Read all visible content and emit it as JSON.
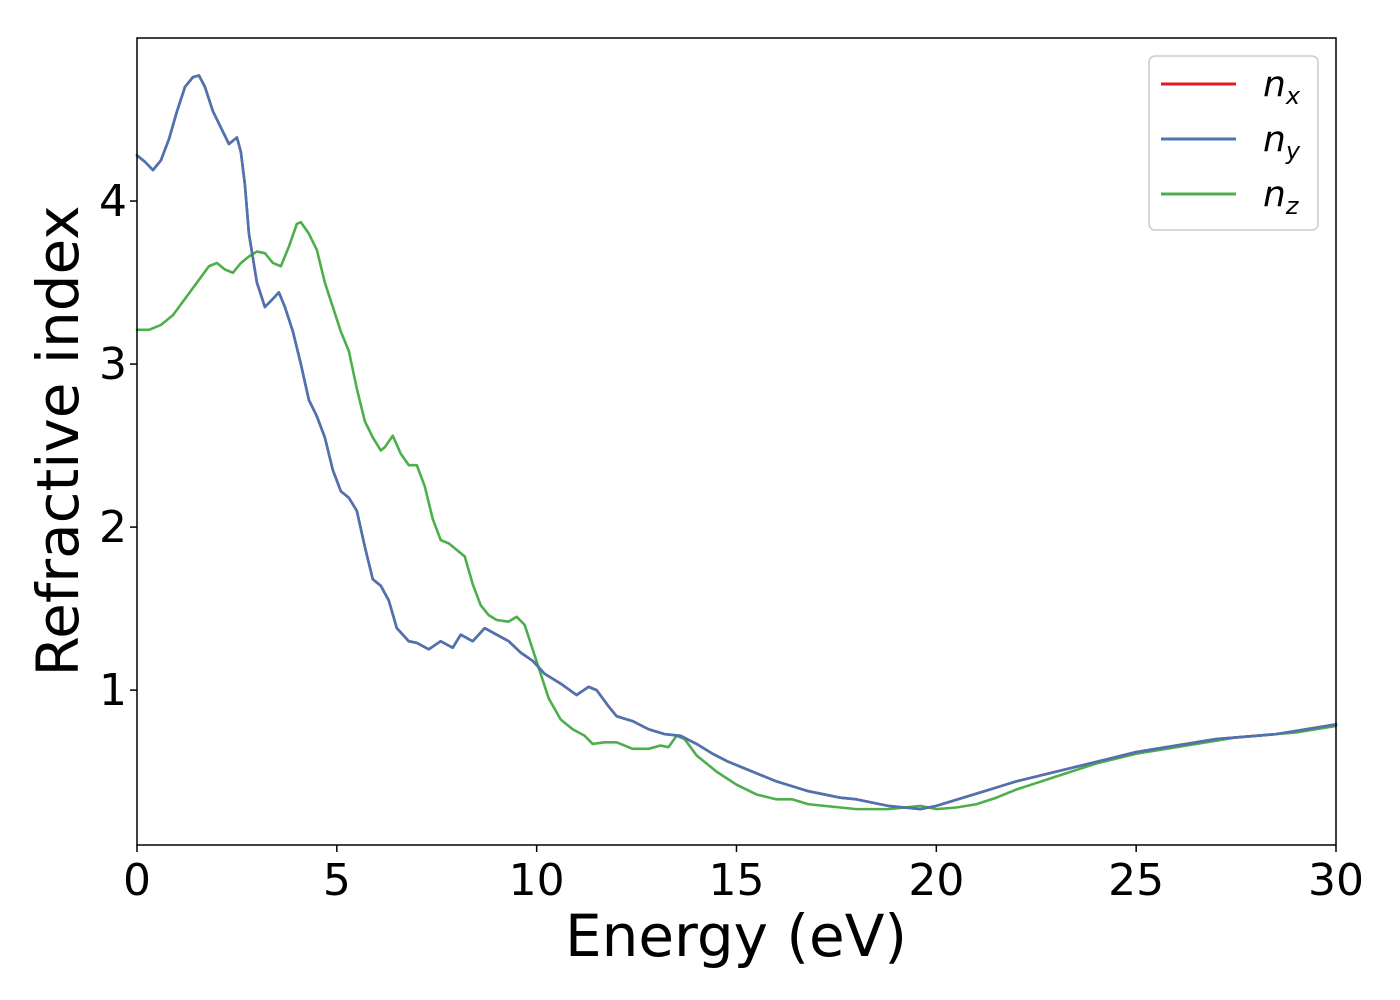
{
  "chart_data": {
    "type": "line",
    "xlabel": "Energy (eV)",
    "ylabel": "Refractive index",
    "xlim": [
      0,
      30
    ],
    "ylim": [
      0.05,
      5.0
    ],
    "xticks": [
      0,
      5,
      10,
      15,
      20,
      25,
      30
    ],
    "xtick_labels": [
      "0",
      "5",
      "10",
      "15",
      "20",
      "25",
      "30"
    ],
    "yticks": [
      1,
      2,
      3,
      4
    ],
    "ytick_labels": [
      "1",
      "2",
      "3",
      "4"
    ],
    "grid": false,
    "legend_position": "top-right",
    "series": [
      {
        "name": "n",
        "subscript": "x",
        "color": "#e41a1c",
        "points": [
          [
            0,
            4.28
          ],
          [
            0.2,
            4.24
          ],
          [
            0.4,
            4.19
          ],
          [
            0.6,
            4.25
          ],
          [
            0.8,
            4.38
          ],
          [
            1.0,
            4.55
          ],
          [
            1.2,
            4.7
          ],
          [
            1.4,
            4.76
          ],
          [
            1.55,
            4.77
          ],
          [
            1.7,
            4.7
          ],
          [
            1.9,
            4.55
          ],
          [
            2.1,
            4.45
          ],
          [
            2.3,
            4.35
          ],
          [
            2.5,
            4.39
          ],
          [
            2.6,
            4.3
          ],
          [
            2.7,
            4.1
          ],
          [
            2.8,
            3.8
          ],
          [
            3.0,
            3.5
          ],
          [
            3.2,
            3.35
          ],
          [
            3.4,
            3.4
          ],
          [
            3.55,
            3.44
          ],
          [
            3.7,
            3.35
          ],
          [
            3.9,
            3.2
          ],
          [
            4.1,
            3.0
          ],
          [
            4.3,
            2.78
          ],
          [
            4.5,
            2.68
          ],
          [
            4.7,
            2.55
          ],
          [
            4.9,
            2.35
          ],
          [
            5.1,
            2.22
          ],
          [
            5.3,
            2.18
          ],
          [
            5.5,
            2.1
          ],
          [
            5.7,
            1.88
          ],
          [
            5.9,
            1.68
          ],
          [
            6.1,
            1.64
          ],
          [
            6.3,
            1.55
          ],
          [
            6.5,
            1.38
          ],
          [
            6.8,
            1.3
          ],
          [
            7.0,
            1.29
          ],
          [
            7.3,
            1.25
          ],
          [
            7.6,
            1.3
          ],
          [
            7.9,
            1.26
          ],
          [
            8.1,
            1.34
          ],
          [
            8.4,
            1.3
          ],
          [
            8.7,
            1.38
          ],
          [
            9.0,
            1.34
          ],
          [
            9.3,
            1.3
          ],
          [
            9.6,
            1.23
          ],
          [
            9.9,
            1.18
          ],
          [
            10.2,
            1.1
          ],
          [
            10.6,
            1.04
          ],
          [
            11.0,
            0.97
          ],
          [
            11.3,
            1.02
          ],
          [
            11.5,
            1.0
          ],
          [
            11.8,
            0.9
          ],
          [
            12.0,
            0.84
          ],
          [
            12.4,
            0.81
          ],
          [
            12.8,
            0.76
          ],
          [
            13.2,
            0.73
          ],
          [
            13.6,
            0.72
          ],
          [
            14.0,
            0.67
          ],
          [
            14.4,
            0.61
          ],
          [
            14.8,
            0.56
          ],
          [
            15.2,
            0.52
          ],
          [
            15.6,
            0.48
          ],
          [
            16.0,
            0.44
          ],
          [
            16.4,
            0.41
          ],
          [
            16.8,
            0.38
          ],
          [
            17.2,
            0.36
          ],
          [
            17.6,
            0.34
          ],
          [
            18.0,
            0.33
          ],
          [
            18.4,
            0.31
          ],
          [
            18.8,
            0.29
          ],
          [
            19.2,
            0.28
          ],
          [
            19.6,
            0.27
          ],
          [
            20.0,
            0.29
          ],
          [
            20.4,
            0.32
          ],
          [
            20.8,
            0.35
          ],
          [
            21.2,
            0.38
          ],
          [
            21.6,
            0.41
          ],
          [
            22.0,
            0.44
          ],
          [
            22.5,
            0.47
          ],
          [
            23.0,
            0.5
          ],
          [
            23.5,
            0.53
          ],
          [
            24.0,
            0.56
          ],
          [
            24.5,
            0.59
          ],
          [
            25.0,
            0.62
          ],
          [
            25.5,
            0.64
          ],
          [
            26.0,
            0.66
          ],
          [
            26.5,
            0.68
          ],
          [
            27.0,
            0.7
          ],
          [
            27.5,
            0.71
          ],
          [
            28.0,
            0.72
          ],
          [
            28.5,
            0.73
          ],
          [
            29.0,
            0.75
          ],
          [
            29.5,
            0.77
          ],
          [
            30.0,
            0.79
          ]
        ]
      },
      {
        "name": "n",
        "subscript": "y",
        "color": "#4a74b4",
        "points": [
          [
            0,
            4.28
          ],
          [
            0.2,
            4.24
          ],
          [
            0.4,
            4.19
          ],
          [
            0.6,
            4.25
          ],
          [
            0.8,
            4.38
          ],
          [
            1.0,
            4.55
          ],
          [
            1.2,
            4.7
          ],
          [
            1.4,
            4.76
          ],
          [
            1.55,
            4.77
          ],
          [
            1.7,
            4.7
          ],
          [
            1.9,
            4.55
          ],
          [
            2.1,
            4.45
          ],
          [
            2.3,
            4.35
          ],
          [
            2.5,
            4.39
          ],
          [
            2.6,
            4.3
          ],
          [
            2.7,
            4.1
          ],
          [
            2.8,
            3.8
          ],
          [
            3.0,
            3.5
          ],
          [
            3.2,
            3.35
          ],
          [
            3.4,
            3.4
          ],
          [
            3.55,
            3.44
          ],
          [
            3.7,
            3.35
          ],
          [
            3.9,
            3.2
          ],
          [
            4.1,
            3.0
          ],
          [
            4.3,
            2.78
          ],
          [
            4.5,
            2.68
          ],
          [
            4.7,
            2.55
          ],
          [
            4.9,
            2.35
          ],
          [
            5.1,
            2.22
          ],
          [
            5.3,
            2.18
          ],
          [
            5.5,
            2.1
          ],
          [
            5.7,
            1.88
          ],
          [
            5.9,
            1.68
          ],
          [
            6.1,
            1.64
          ],
          [
            6.3,
            1.55
          ],
          [
            6.5,
            1.38
          ],
          [
            6.8,
            1.3
          ],
          [
            7.0,
            1.29
          ],
          [
            7.3,
            1.25
          ],
          [
            7.6,
            1.3
          ],
          [
            7.9,
            1.26
          ],
          [
            8.1,
            1.34
          ],
          [
            8.4,
            1.3
          ],
          [
            8.7,
            1.38
          ],
          [
            9.0,
            1.34
          ],
          [
            9.3,
            1.3
          ],
          [
            9.6,
            1.23
          ],
          [
            9.9,
            1.18
          ],
          [
            10.2,
            1.1
          ],
          [
            10.6,
            1.04
          ],
          [
            11.0,
            0.97
          ],
          [
            11.3,
            1.02
          ],
          [
            11.5,
            1.0
          ],
          [
            11.8,
            0.9
          ],
          [
            12.0,
            0.84
          ],
          [
            12.4,
            0.81
          ],
          [
            12.8,
            0.76
          ],
          [
            13.2,
            0.73
          ],
          [
            13.6,
            0.72
          ],
          [
            14.0,
            0.67
          ],
          [
            14.4,
            0.61
          ],
          [
            14.8,
            0.56
          ],
          [
            15.2,
            0.52
          ],
          [
            15.6,
            0.48
          ],
          [
            16.0,
            0.44
          ],
          [
            16.4,
            0.41
          ],
          [
            16.8,
            0.38
          ],
          [
            17.2,
            0.36
          ],
          [
            17.6,
            0.34
          ],
          [
            18.0,
            0.33
          ],
          [
            18.4,
            0.31
          ],
          [
            18.8,
            0.29
          ],
          [
            19.2,
            0.28
          ],
          [
            19.6,
            0.27
          ],
          [
            20.0,
            0.29
          ],
          [
            20.4,
            0.32
          ],
          [
            20.8,
            0.35
          ],
          [
            21.2,
            0.38
          ],
          [
            21.6,
            0.41
          ],
          [
            22.0,
            0.44
          ],
          [
            22.5,
            0.47
          ],
          [
            23.0,
            0.5
          ],
          [
            23.5,
            0.53
          ],
          [
            24.0,
            0.56
          ],
          [
            24.5,
            0.59
          ],
          [
            25.0,
            0.62
          ],
          [
            25.5,
            0.64
          ],
          [
            26.0,
            0.66
          ],
          [
            26.5,
            0.68
          ],
          [
            27.0,
            0.7
          ],
          [
            27.5,
            0.71
          ],
          [
            28.0,
            0.72
          ],
          [
            28.5,
            0.73
          ],
          [
            29.0,
            0.75
          ],
          [
            29.5,
            0.77
          ],
          [
            30.0,
            0.79
          ]
        ]
      },
      {
        "name": "n",
        "subscript": "z",
        "color": "#4daf4a",
        "points": [
          [
            0,
            3.21
          ],
          [
            0.3,
            3.21
          ],
          [
            0.6,
            3.24
          ],
          [
            0.9,
            3.3
          ],
          [
            1.2,
            3.4
          ],
          [
            1.5,
            3.5
          ],
          [
            1.8,
            3.6
          ],
          [
            2.0,
            3.62
          ],
          [
            2.2,
            3.58
          ],
          [
            2.4,
            3.56
          ],
          [
            2.6,
            3.62
          ],
          [
            2.8,
            3.66
          ],
          [
            3.0,
            3.69
          ],
          [
            3.2,
            3.68
          ],
          [
            3.4,
            3.62
          ],
          [
            3.6,
            3.6
          ],
          [
            3.8,
            3.72
          ],
          [
            4.0,
            3.86
          ],
          [
            4.1,
            3.87
          ],
          [
            4.3,
            3.8
          ],
          [
            4.5,
            3.7
          ],
          [
            4.7,
            3.5
          ],
          [
            4.9,
            3.35
          ],
          [
            5.1,
            3.2
          ],
          [
            5.3,
            3.08
          ],
          [
            5.5,
            2.85
          ],
          [
            5.7,
            2.65
          ],
          [
            5.9,
            2.55
          ],
          [
            6.1,
            2.47
          ],
          [
            6.2,
            2.49
          ],
          [
            6.4,
            2.56
          ],
          [
            6.6,
            2.45
          ],
          [
            6.8,
            2.38
          ],
          [
            7.0,
            2.38
          ],
          [
            7.2,
            2.25
          ],
          [
            7.4,
            2.05
          ],
          [
            7.6,
            1.92
          ],
          [
            7.8,
            1.9
          ],
          [
            8.0,
            1.86
          ],
          [
            8.2,
            1.82
          ],
          [
            8.4,
            1.65
          ],
          [
            8.6,
            1.52
          ],
          [
            8.8,
            1.46
          ],
          [
            9.0,
            1.43
          ],
          [
            9.3,
            1.42
          ],
          [
            9.5,
            1.45
          ],
          [
            9.7,
            1.4
          ],
          [
            9.9,
            1.25
          ],
          [
            10.1,
            1.1
          ],
          [
            10.3,
            0.95
          ],
          [
            10.6,
            0.82
          ],
          [
            10.9,
            0.76
          ],
          [
            11.2,
            0.72
          ],
          [
            11.4,
            0.67
          ],
          [
            11.7,
            0.68
          ],
          [
            12.0,
            0.68
          ],
          [
            12.4,
            0.64
          ],
          [
            12.8,
            0.64
          ],
          [
            13.1,
            0.66
          ],
          [
            13.3,
            0.65
          ],
          [
            13.5,
            0.72
          ],
          [
            13.7,
            0.7
          ],
          [
            14.0,
            0.6
          ],
          [
            14.5,
            0.5
          ],
          [
            15.0,
            0.42
          ],
          [
            15.5,
            0.36
          ],
          [
            16.0,
            0.33
          ],
          [
            16.4,
            0.33
          ],
          [
            16.8,
            0.3
          ],
          [
            17.2,
            0.29
          ],
          [
            17.6,
            0.28
          ],
          [
            18.0,
            0.27
          ],
          [
            18.4,
            0.27
          ],
          [
            18.8,
            0.27
          ],
          [
            19.2,
            0.28
          ],
          [
            19.6,
            0.29
          ],
          [
            20.0,
            0.27
          ],
          [
            20.5,
            0.28
          ],
          [
            21.0,
            0.3
          ],
          [
            21.5,
            0.34
          ],
          [
            22.0,
            0.39
          ],
          [
            22.5,
            0.43
          ],
          [
            23.0,
            0.47
          ],
          [
            23.5,
            0.51
          ],
          [
            24.0,
            0.55
          ],
          [
            24.5,
            0.58
          ],
          [
            25.0,
            0.61
          ],
          [
            25.5,
            0.63
          ],
          [
            26.0,
            0.65
          ],
          [
            26.5,
            0.67
          ],
          [
            27.0,
            0.69
          ],
          [
            27.5,
            0.71
          ],
          [
            28.0,
            0.72
          ],
          [
            28.5,
            0.73
          ],
          [
            29.0,
            0.74
          ],
          [
            29.5,
            0.76
          ],
          [
            30.0,
            0.78
          ]
        ]
      }
    ]
  }
}
